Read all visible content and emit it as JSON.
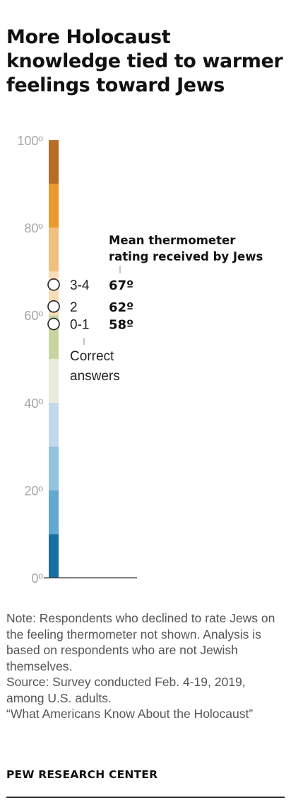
{
  "title": "More Holocaust knowledge tied to warmer feelings toward Jews",
  "chart_data": {
    "type": "scatter",
    "title": "More Holocaust knowledge tied to warmer feelings toward Jews",
    "ylim": [
      0,
      100
    ],
    "y_ticks": [
      "100º",
      "80º",
      "60º",
      "40º",
      "20º",
      "0º"
    ],
    "y_tick_values": [
      100,
      80,
      60,
      40,
      20,
      0
    ],
    "color_bands": [
      {
        "from": 0,
        "to": 10,
        "color": "#176fa1"
      },
      {
        "from": 10,
        "to": 20,
        "color": "#63a8d0"
      },
      {
        "from": 20,
        "to": 30,
        "color": "#93c2df"
      },
      {
        "from": 30,
        "to": 40,
        "color": "#c2d9ec"
      },
      {
        "from": 40,
        "to": 50,
        "color": "#e9ecdb"
      },
      {
        "from": 50,
        "to": 60,
        "color": "#c7d69f"
      },
      {
        "from": 60,
        "to": 70,
        "color": "#f8ddb9"
      },
      {
        "from": 70,
        "to": 80,
        "color": "#f1c07f"
      },
      {
        "from": 80,
        "to": 90,
        "color": "#ea9a2d"
      },
      {
        "from": 90,
        "to": 100,
        "color": "#b86d24"
      }
    ],
    "points": [
      {
        "label": "3-4",
        "value": 67,
        "value_label": "67º"
      },
      {
        "label": "2",
        "value": 62,
        "value_label": "62º"
      },
      {
        "label": "0-1",
        "value": 58,
        "value_label": "58º"
      }
    ],
    "annotations": {
      "value_header_line1": "Mean thermometer",
      "value_header_line2": "rating received by Jews",
      "group_label_line1": "Correct",
      "group_label_line2": "answers"
    }
  },
  "notes": [
    "Note: Respondents who declined to rate Jews on the feeling thermometer not shown. Analysis is based on respondents who are not Jewish themselves.",
    "Source: Survey conducted Feb. 4-19, 2019, among U.S. adults.",
    "“What Americans Know About the Holocaust”"
  ],
  "brand": "PEW RESEARCH CENTER"
}
